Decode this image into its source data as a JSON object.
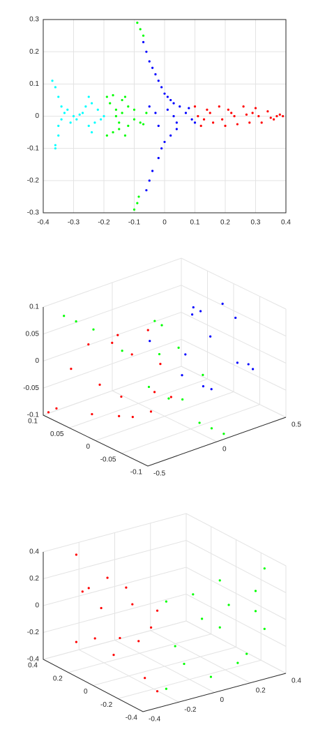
{
  "chart_data": [
    {
      "type": "scatter",
      "grid": true,
      "xlim": [
        -0.4,
        0.4
      ],
      "ylim": [
        -0.3,
        0.3
      ],
      "xticks": [
        -0.4,
        -0.3,
        -0.2,
        -0.1,
        0,
        0.1,
        0.2,
        0.3,
        0.4
      ],
      "yticks": [
        -0.3,
        -0.2,
        -0.1,
        0,
        0.1,
        0.2,
        0.3
      ],
      "series": [
        {
          "color": "#00ffff",
          "x": [
            -0.37,
            -0.36,
            -0.35,
            -0.34,
            -0.33,
            -0.36,
            -0.35,
            -0.36,
            -0.35,
            -0.34,
            -0.3,
            -0.28,
            -0.26,
            -0.24,
            -0.22,
            -0.21,
            -0.25,
            -0.24,
            -0.25,
            -0.23,
            -0.32,
            -0.31,
            -0.29,
            -0.27,
            -0.2
          ],
          "y": [
            0.11,
            0.09,
            0.06,
            0.03,
            0.01,
            -0.09,
            -0.06,
            -0.1,
            -0.03,
            -0.01,
            0,
            0.005,
            0.03,
            0.04,
            0.02,
            -0.01,
            -0.03,
            -0.05,
            0.06,
            -0.02,
            0.02,
            -0.02,
            -0.01,
            0.01,
            0
          ]
        },
        {
          "color": "#00ff00",
          "x": [
            -0.19,
            -0.18,
            -0.17,
            -0.16,
            -0.15,
            -0.14,
            -0.13,
            -0.12,
            -0.19,
            -0.17,
            -0.15,
            -0.13,
            -0.12,
            -0.1,
            -0.08,
            -0.06,
            -0.1,
            -0.07,
            -0.16,
            -0.14,
            -0.09,
            -0.08,
            -0.07,
            -0.1,
            -0.09,
            -0.085
          ],
          "y": [
            0.06,
            0.04,
            0.065,
            0.02,
            -0.02,
            0.05,
            0.06,
            -0.03,
            -0.06,
            -0.05,
            -0.04,
            -0.06,
            0.03,
            0.02,
            -0.02,
            0.01,
            -0.01,
            -0.025,
            0,
            0.01,
            0.29,
            0.27,
            0.25,
            -0.29,
            -0.27,
            -0.25
          ]
        },
        {
          "color": "#0000ff",
          "x": [
            -0.07,
            -0.06,
            -0.05,
            -0.04,
            -0.03,
            -0.02,
            -0.01,
            0,
            0.01,
            0.02,
            0.03,
            0.05,
            -0.06,
            -0.05,
            -0.04,
            -0.02,
            -0.01,
            0,
            0.02,
            0.04,
            -0.05,
            -0.02,
            0.01,
            0.04,
            0.07,
            0.09,
            -0.03,
            0.03,
            0.08,
            0.1
          ],
          "y": [
            0.23,
            0.2,
            0.17,
            0.15,
            0.13,
            0.11,
            0.09,
            0.07,
            0.06,
            0.05,
            0.04,
            0.03,
            -0.23,
            -0.2,
            -0.17,
            -0.13,
            -0.1,
            -0.08,
            -0.06,
            -0.04,
            0.03,
            -0.03,
            0.02,
            -0.02,
            0.01,
            -0.01,
            0.01,
            0,
            0.025,
            -0.02
          ]
        },
        {
          "color": "#ff0000",
          "x": [
            0.1,
            0.12,
            0.14,
            0.16,
            0.18,
            0.2,
            0.22,
            0.24,
            0.26,
            0.28,
            0.3,
            0.32,
            0.34,
            0.36,
            0.38,
            0.39,
            0.11,
            0.15,
            0.19,
            0.23,
            0.27,
            0.31,
            0.35,
            0.13,
            0.21,
            0.29,
            0.37
          ],
          "y": [
            0.03,
            -0.03,
            0.02,
            -0.02,
            0.03,
            -0.03,
            0.01,
            -0.025,
            0.03,
            -0.02,
            0.025,
            -0.02,
            0.015,
            -0.01,
            0.005,
            0,
            0,
            0.01,
            -0.01,
            0,
            0.005,
            0,
            -0.005,
            -0.01,
            0.02,
            0.01,
            0
          ]
        }
      ]
    },
    {
      "type": "scatter3d",
      "grid": true,
      "xlim": [
        -0.5,
        0.5
      ],
      "ylim": [
        -0.1,
        0.1
      ],
      "zlim": [
        -0.1,
        0.1
      ],
      "xticks": [
        -0.5,
        0,
        0.5
      ],
      "yticks": [
        -0.1,
        -0.05,
        0,
        0.05,
        0.1
      ],
      "zticks": [
        -0.1,
        -0.05,
        0,
        0.05,
        0.1
      ],
      "series": [
        {
          "color": "#ff0000",
          "x": [
            -0.45,
            -0.4,
            -0.35,
            -0.3,
            -0.25,
            -0.2,
            -0.15,
            -0.42,
            -0.38,
            -0.33,
            -0.28,
            -0.22,
            -0.12,
            -0.18,
            -0.45,
            -0.48,
            -0.5
          ],
          "y": [
            0.06,
            0.04,
            -0.03,
            -0.06,
            -0.04,
            0.03,
            0.05,
            -0.05,
            0,
            0,
            0.05,
            -0.05,
            0,
            -0.06,
            0.02,
            0.08,
            0.09
          ],
          "z": [
            0,
            0.05,
            0.06,
            0,
            -0.05,
            -0.06,
            0.04,
            -0.04,
            0.07,
            -0.07,
            -0.04,
            0.04,
            0.07,
            -0.02,
            -0.065,
            -0.08,
            -0.09
          ]
        },
        {
          "color": "#00ff00",
          "x": [
            -0.08,
            -0.05,
            0,
            0.05,
            0.08,
            -0.02,
            0.03,
            -0.06,
            -0.3,
            -0.35,
            -0.25,
            0,
            0.05,
            -0.05,
            0
          ],
          "y": [
            0.06,
            -0.04,
            0.03,
            -0.06,
            0.04,
            0,
            0,
            -0.05,
            0.09,
            0.1,
            0.07,
            -0.09,
            -0.1,
            -0.08,
            0.01
          ],
          "z": [
            0,
            0.05,
            -0.06,
            0,
            0.05,
            0.07,
            -0.07,
            -0.04,
            0.06,
            0.07,
            0.05,
            -0.08,
            -0.09,
            -0.07,
            0.01
          ]
        },
        {
          "color": "#0000ff",
          "x": [
            0.12,
            0.18,
            0.24,
            0.3,
            0.36,
            0.42,
            0.45,
            0.2,
            0.28,
            0.34,
            0.4,
            0.15,
            0.45,
            0.38
          ],
          "y": [
            0.06,
            -0.04,
            0.03,
            -0.06,
            0.04,
            0,
            -0.05,
            0,
            0,
            0.05,
            -0.03,
            -0.05,
            0.05,
            -0.06
          ],
          "z": [
            0,
            0.05,
            -0.06,
            0,
            0.05,
            0.07,
            -0.03,
            0.07,
            -0.07,
            -0.04,
            0.06,
            -0.04,
            0.03,
            -0.01
          ]
        }
      ]
    },
    {
      "type": "scatter3d",
      "grid": true,
      "xlim": [
        -0.4,
        0.4
      ],
      "ylim": [
        -0.4,
        0.4
      ],
      "zlim": [
        -0.4,
        0.4
      ],
      "xticks": [
        -0.4,
        -0.2,
        0,
        0.2,
        0.4
      ],
      "yticks": [
        -0.4,
        -0.2,
        0,
        0.2,
        0.4
      ],
      "zticks": [
        -0.4,
        -0.2,
        0,
        0.2,
        0.4
      ],
      "series": [
        {
          "color": "#ff0000",
          "x": [
            -0.25,
            -0.25,
            -0.25,
            -0.25,
            -0.25,
            -0.25,
            -0.25,
            -0.25,
            -0.25,
            -0.25,
            -0.25,
            -0.25,
            -0.25,
            -0.25,
            -0.25,
            -0.25
          ],
          "y": [
            0.35,
            0.3,
            0.2,
            0.1,
            0,
            -0.1,
            -0.2,
            -0.3,
            0.35,
            0.25,
            0.15,
            0.05,
            -0.05,
            -0.15,
            -0.25,
            -0.3
          ],
          "z": [
            0.35,
            0.1,
            -0.2,
            0.3,
            -0.1,
            0.2,
            -0.3,
            0.25,
            -0.3,
            0.15,
            0.05,
            -0.25,
            0.3,
            -0.05,
            0.1,
            -0.35
          ]
        },
        {
          "color": "#00ff00",
          "x": [
            -0.2,
            -0.1,
            0,
            0.1,
            0.2,
            0.3,
            0.35,
            -0.15,
            -0.05,
            0.05,
            0.15,
            0.25,
            0.35,
            -0.2,
            0.1,
            0.3
          ],
          "y": [
            -0.3,
            -0.3,
            -0.3,
            -0.3,
            -0.3,
            -0.3,
            -0.3,
            -0.3,
            -0.3,
            -0.3,
            -0.3,
            -0.3,
            -0.3,
            -0.3,
            -0.3,
            -0.3
          ],
          "z": [
            0.3,
            -0.2,
            0.1,
            0.35,
            -0.3,
            0.2,
            -0.1,
            -0.05,
            0.3,
            -0.35,
            0.15,
            -0.25,
            0.35,
            -0.35,
            0,
            0.05
          ]
        }
      ]
    }
  ]
}
